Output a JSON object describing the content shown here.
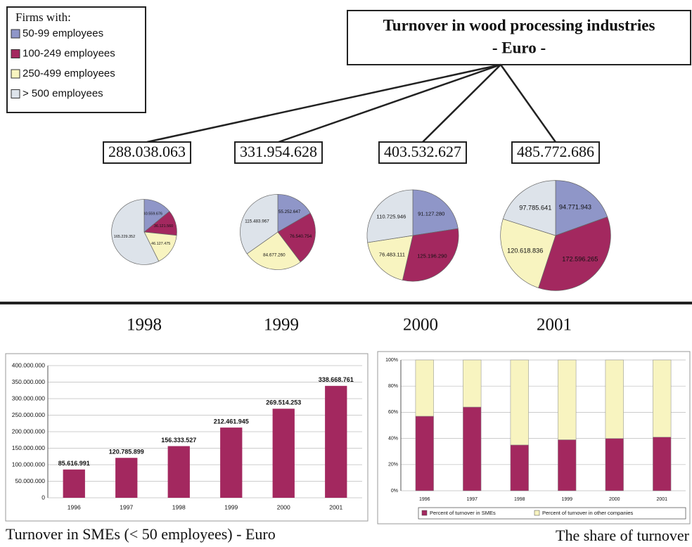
{
  "title": "Turnover  in wood processing industries",
  "subtitle": "- Euro -",
  "legend": {
    "title": "Firms with:",
    "items": [
      {
        "name": "50-99 employees",
        "color": "#8f96c8"
      },
      {
        "name": "100-249 employees",
        "color": "#a3285f"
      },
      {
        "name": "250-499 employees",
        "color": "#f8f4c0"
      },
      {
        "name": "> 500 employees",
        "color": "#dde3ea"
      }
    ]
  },
  "chart_data": [
    {
      "type": "pie",
      "title": "1998",
      "total": "288.038.063",
      "values": [
        40559676,
        36121560,
        46127475,
        165229352
      ],
      "value_labels": [
        "40.559.676",
        "36.121.560",
        "46.127.475",
        "165.229.352"
      ]
    },
    {
      "type": "pie",
      "title": "1999",
      "total": "331.954.628",
      "values": [
        55252647,
        76540754,
        84677260,
        115483967
      ],
      "value_labels": [
        "55.252.647",
        "76.540.754",
        "84.677.260",
        "115.483.967"
      ]
    },
    {
      "type": "pie",
      "title": "2000",
      "total": "403.532.627",
      "values": [
        91127280,
        125196290,
        76483111,
        110725946
      ],
      "value_labels": [
        "91.127.280",
        "125.196.290",
        "76.483.111",
        "110.725.946"
      ]
    },
    {
      "type": "pie",
      "title": "2001",
      "total": "485.772.686",
      "values": [
        94771943,
        172596265,
        120618836,
        97785641
      ],
      "value_labels": [
        "94.771.943",
        "172.596.265",
        "120.618.836",
        "97.785.641"
      ]
    },
    {
      "type": "bar",
      "title": "Turnover  in SMEs (< 50 employees) - Euro",
      "categories": [
        "1996",
        "1997",
        "1998",
        "1999",
        "2000",
        "2001"
      ],
      "values": [
        85616991,
        120785899,
        156333527,
        212461945,
        269514253,
        338668761
      ],
      "value_labels": [
        "85.616.991",
        "120.785.899",
        "156.333.527",
        "212.461.945",
        "269.514.253",
        "338.668.761"
      ],
      "color": "#a3285f",
      "ylim": [
        0,
        400000000
      ],
      "grid": true,
      "yticks": [
        {
          "value": 0,
          "label": "0"
        },
        {
          "value": 50000000,
          "label": "50.000.000"
        },
        {
          "value": 100000000,
          "label": "100.000.000"
        },
        {
          "value": 150000000,
          "label": "150.000.000"
        },
        {
          "value": 200000000,
          "label": "200.000.000"
        },
        {
          "value": 250000000,
          "label": "250.000.000"
        },
        {
          "value": 300000000,
          "label": "300.000.000"
        },
        {
          "value": 350000000,
          "label": "350.000.000"
        },
        {
          "value": 400000000,
          "label": "400.000.000"
        }
      ]
    },
    {
      "type": "stacked_bar",
      "title": "The share of turnover",
      "categories": [
        "1996",
        "1997",
        "1998",
        "1999",
        "2000",
        "2001"
      ],
      "series": [
        {
          "name": "Percent of turnover in SMEs",
          "color": "#a3285f",
          "values": [
            57,
            64,
            35,
            39,
            40,
            41
          ]
        },
        {
          "name": "Percent of turnover in other companies",
          "color": "#f8f4c0",
          "values": [
            43,
            36,
            65,
            61,
            60,
            59
          ]
        }
      ],
      "ylim": [
        0,
        100
      ],
      "grid": true,
      "yticks": [
        {
          "value": 0,
          "label": "0%"
        },
        {
          "value": 20,
          "label": "20%"
        },
        {
          "value": 40,
          "label": "40%"
        },
        {
          "value": 60,
          "label": "60%"
        },
        {
          "value": 80,
          "label": "80%"
        },
        {
          "value": 100,
          "label": "100%"
        }
      ]
    }
  ]
}
